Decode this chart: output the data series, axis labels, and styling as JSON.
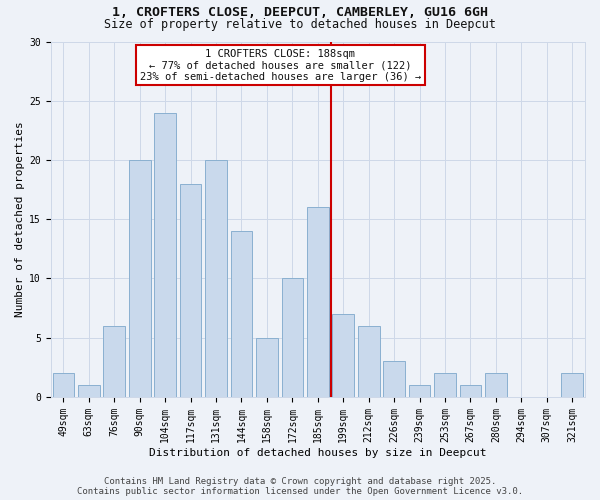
{
  "title_line1": "1, CROFTERS CLOSE, DEEPCUT, CAMBERLEY, GU16 6GH",
  "title_line2": "Size of property relative to detached houses in Deepcut",
  "xlabel": "Distribution of detached houses by size in Deepcut",
  "ylabel": "Number of detached properties",
  "categories": [
    "49sqm",
    "63sqm",
    "76sqm",
    "90sqm",
    "104sqm",
    "117sqm",
    "131sqm",
    "144sqm",
    "158sqm",
    "172sqm",
    "185sqm",
    "199sqm",
    "212sqm",
    "226sqm",
    "239sqm",
    "253sqm",
    "267sqm",
    "280sqm",
    "294sqm",
    "307sqm",
    "321sqm"
  ],
  "values": [
    2,
    1,
    6,
    20,
    24,
    18,
    20,
    14,
    5,
    10,
    16,
    7,
    6,
    3,
    1,
    2,
    1,
    2,
    0,
    0,
    2
  ],
  "bar_color": "#c9d9ec",
  "bar_edge_color": "#8ab0d0",
  "vline_x_index": 10.5,
  "vline_color": "#cc0000",
  "annotation_line1": "1 CROFTERS CLOSE: 188sqm",
  "annotation_line2": "← 77% of detached houses are smaller (122)",
  "annotation_line3": "23% of semi-detached houses are larger (36) →",
  "annotation_box_color": "#cc0000",
  "annotation_box_fill": "#ffffff",
  "grid_color": "#ced8e8",
  "background_color": "#eef2f8",
  "ylim": [
    0,
    30
  ],
  "yticks": [
    0,
    5,
    10,
    15,
    20,
    25,
    30
  ],
  "footer_text": "Contains HM Land Registry data © Crown copyright and database right 2025.\nContains public sector information licensed under the Open Government Licence v3.0.",
  "title_fontsize": 9.5,
  "subtitle_fontsize": 8.5,
  "axis_label_fontsize": 8,
  "tick_fontsize": 7,
  "annotation_fontsize": 7.5,
  "footer_fontsize": 6.5
}
